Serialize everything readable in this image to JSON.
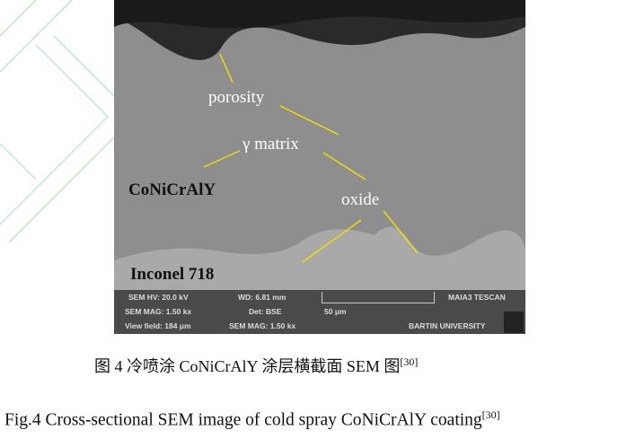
{
  "figure": {
    "labels": {
      "porosity": "porosity",
      "matrix": "γ matrix",
      "oxide": "oxide",
      "coating": "CoNiCrAlY",
      "substrate": "Inconel 718"
    },
    "info_bar": {
      "hv": "SEM HV: 20.0 kV",
      "wd": "WD: 6.81 mm",
      "brand": "MAIA3 TESCAN",
      "mag1": "SEM MAG: 1.50 kx",
      "det": "Det: BSE",
      "scale": "50 μm",
      "view": "View field: 184 μm",
      "mag2": "SEM MAG: 1.50 kx",
      "univ": "BARTIN UNIVERSITY"
    },
    "arrow_color": "#f0e000"
  },
  "caption_cn": {
    "text": "图 4 冷喷涂 CoNiCrAlY 涂层横截面 SEM 图",
    "ref": "[30]"
  },
  "caption_en": {
    "text": "Fig.4 Cross-sectional SEM image of cold spray CoNiCrAlY coating",
    "ref": "[30]"
  }
}
